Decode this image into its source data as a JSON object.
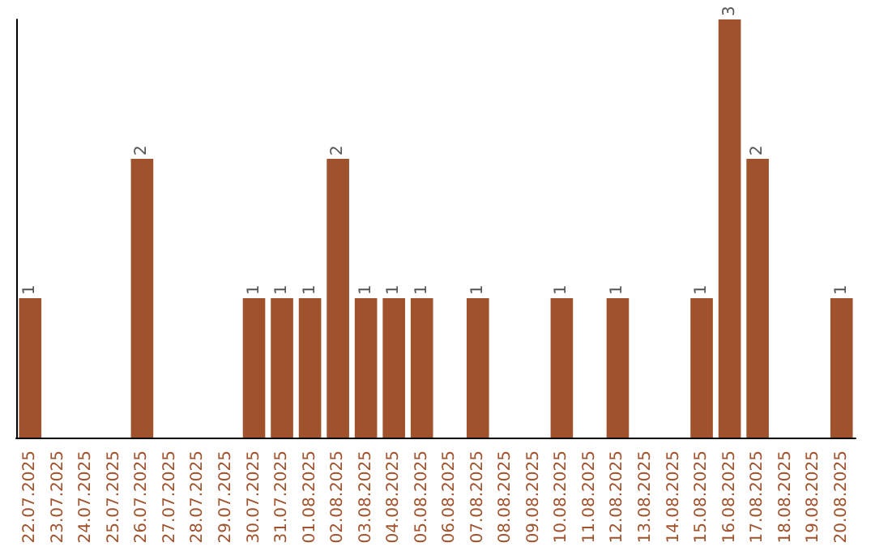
{
  "chart_data": {
    "type": "bar",
    "categories": [
      "22.07.2025",
      "23.07.2025",
      "24.07.2025",
      "25.07.2025",
      "26.07.2025",
      "27.07.2025",
      "28.07.2025",
      "29.07.2025",
      "30.07.2025",
      "31.07.2025",
      "01.08.2025",
      "02.08.2025",
      "03.08.2025",
      "04.08.2025",
      "05.08.2025",
      "06.08.2025",
      "07.08.2025",
      "08.08.2025",
      "09.08.2025",
      "10.08.2025",
      "11.08.2025",
      "12.08.2025",
      "13.08.2025",
      "14.08.2025",
      "15.08.2025",
      "16.08.2025",
      "17.08.2025",
      "18.08.2025",
      "19.08.2025",
      "20.08.2025"
    ],
    "values": [
      1,
      0,
      0,
      0,
      2,
      0,
      0,
      0,
      1,
      1,
      1,
      2,
      1,
      1,
      1,
      0,
      1,
      0,
      0,
      1,
      0,
      1,
      0,
      0,
      1,
      3,
      2,
      0,
      0,
      1
    ],
    "value_labels": [
      "1",
      null,
      null,
      null,
      "2",
      null,
      null,
      null,
      "1",
      "1",
      "1",
      "2",
      "1",
      "1",
      "1",
      null,
      "1",
      null,
      null,
      "1",
      null,
      "1",
      null,
      null,
      "1",
      "3",
      "2",
      null,
      null,
      "1"
    ],
    "color": "#a0522d",
    "tick_labels": "x"
  }
}
